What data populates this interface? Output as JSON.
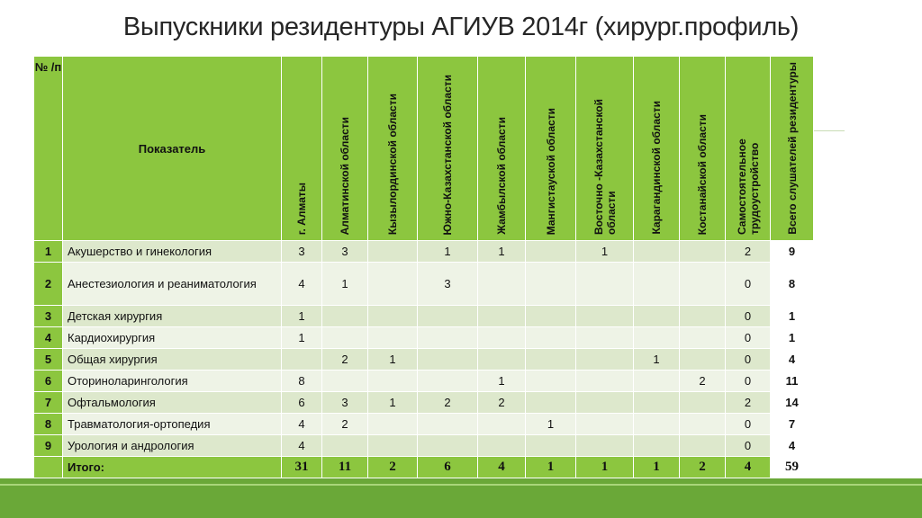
{
  "title": "Выпускники резидентуры АГИУВ 2014г (хирург.профиль)",
  "table": {
    "header_num": "№ /п",
    "header_indicator": "Показатель",
    "columns": [
      "г. Алматы",
      "Алматинской области",
      "Кызылординской области",
      "Южно-Казахстанской области",
      "Жамбылской области",
      "Мангистауской области",
      "Восточно -Казахстанской области",
      "Карагандинской области",
      "Костанайской области",
      "Самостоятельное трудоустройство",
      "Всего слушателей резидентуры"
    ],
    "rows": [
      {
        "num": "1",
        "name": "Акушерство и гинекология",
        "values": [
          "3",
          "3",
          "",
          "1",
          "1",
          "",
          "1",
          "",
          "",
          "2",
          "9"
        ]
      },
      {
        "num": "2",
        "name": "Анестезиология и реаниматология",
        "values": [
          "4",
          "1",
          "",
          "3",
          "",
          "",
          "",
          "",
          "",
          "0",
          "8"
        ]
      },
      {
        "num": "3",
        "name": "Детская хирургия",
        "values": [
          "1",
          "",
          "",
          "",
          "",
          "",
          "",
          "",
          "",
          "0",
          "1"
        ]
      },
      {
        "num": "4",
        "name": "Кардиохирургия",
        "values": [
          "1",
          "",
          "",
          "",
          "",
          "",
          "",
          "",
          "",
          "0",
          "1"
        ]
      },
      {
        "num": "5",
        "name": "Общая хирургия",
        "values": [
          "",
          "2",
          "1",
          "",
          "",
          "",
          "",
          "1",
          "",
          "0",
          "4"
        ]
      },
      {
        "num": "6",
        "name": "Оториноларингология",
        "values": [
          "8",
          "",
          "",
          "",
          "1",
          "",
          "",
          "",
          "2",
          "0",
          "11"
        ]
      },
      {
        "num": "7",
        "name": "Офтальмология",
        "values": [
          "6",
          "3",
          "1",
          "2",
          "2",
          "",
          "",
          "",
          "",
          "2",
          "14"
        ]
      },
      {
        "num": "8",
        "name": "Травматология-ортопедия",
        "values": [
          "4",
          "2",
          "",
          "",
          "",
          "1",
          "",
          "",
          "",
          "0",
          "7"
        ]
      },
      {
        "num": "9",
        "name": "Урология и андрология",
        "values": [
          "4",
          "",
          "",
          "",
          "",
          "",
          "",
          "",
          "",
          "0",
          "4"
        ]
      }
    ],
    "total": {
      "num": "",
      "name": "Итого:",
      "values": [
        "31",
        "11",
        "2",
        "6",
        "4",
        "1",
        "1",
        "1",
        "2",
        "4",
        "59"
      ]
    }
  }
}
